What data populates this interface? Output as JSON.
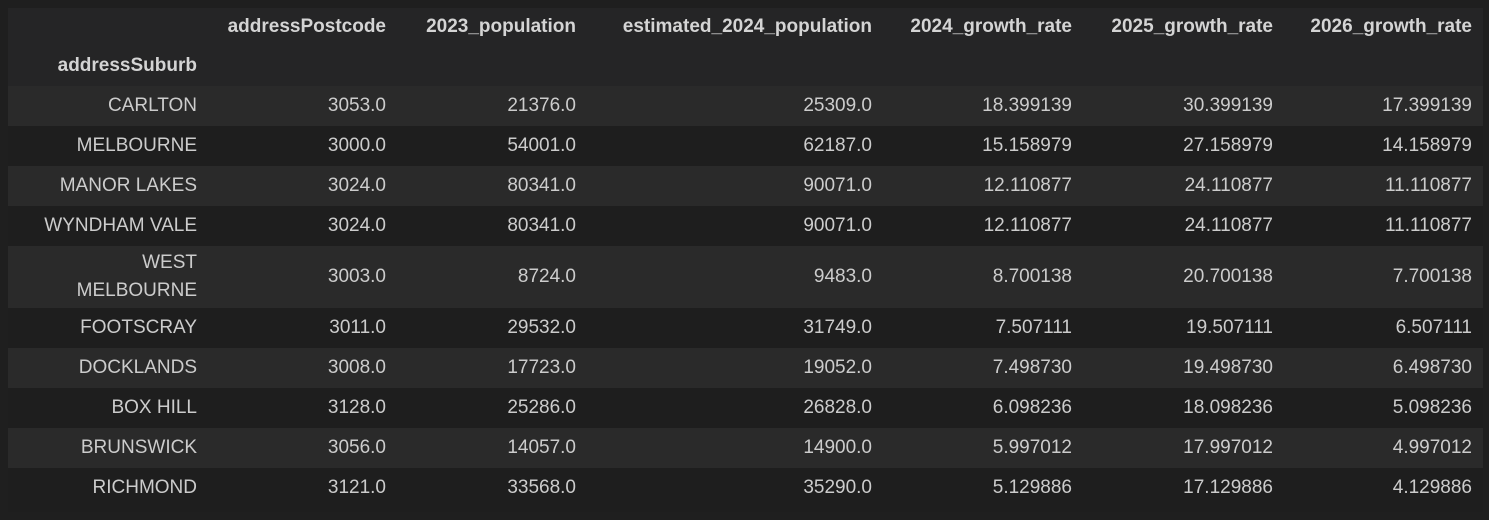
{
  "table": {
    "columns": [
      "addressPostcode",
      "2023_population",
      "estimated_2024_population",
      "2024_growth_rate",
      "2025_growth_rate",
      "2026_growth_rate"
    ],
    "index_name": "addressSuburb",
    "rows": [
      {
        "index": "CARLTON",
        "cells": [
          "3053.0",
          "21376.0",
          "25309.0",
          "18.399139",
          "30.399139",
          "17.399139"
        ]
      },
      {
        "index": "MELBOURNE",
        "cells": [
          "3000.0",
          "54001.0",
          "62187.0",
          "15.158979",
          "27.158979",
          "14.158979"
        ]
      },
      {
        "index": "MANOR LAKES",
        "cells": [
          "3024.0",
          "80341.0",
          "90071.0",
          "12.110877",
          "24.110877",
          "11.110877"
        ]
      },
      {
        "index": "WYNDHAM VALE",
        "cells": [
          "3024.0",
          "80341.0",
          "90071.0",
          "12.110877",
          "24.110877",
          "11.110877"
        ]
      },
      {
        "index": "WEST MELBOURNE",
        "cells": [
          "3003.0",
          "8724.0",
          "9483.0",
          "8.700138",
          "20.700138",
          "7.700138"
        ]
      },
      {
        "index": "FOOTSCRAY",
        "cells": [
          "3011.0",
          "29532.0",
          "31749.0",
          "7.507111",
          "19.507111",
          "6.507111"
        ]
      },
      {
        "index": "DOCKLANDS",
        "cells": [
          "3008.0",
          "17723.0",
          "19052.0",
          "7.498730",
          "19.498730",
          "6.498730"
        ]
      },
      {
        "index": "BOX HILL",
        "cells": [
          "3128.0",
          "25286.0",
          "26828.0",
          "6.098236",
          "18.098236",
          "5.098236"
        ]
      },
      {
        "index": "BRUNSWICK",
        "cells": [
          "3056.0",
          "14057.0",
          "14900.0",
          "5.997012",
          "17.997012",
          "4.997012"
        ]
      },
      {
        "index": "RICHMOND",
        "cells": [
          "3121.0",
          "33568.0",
          "35290.0",
          "5.129886",
          "17.129886",
          "4.129886"
        ]
      }
    ]
  }
}
